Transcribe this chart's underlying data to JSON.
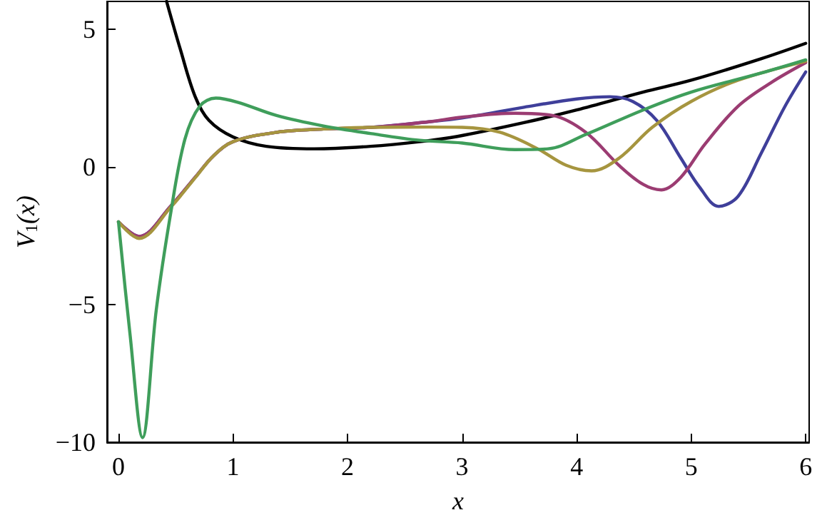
{
  "chart_data": {
    "type": "line",
    "xlabel": "x",
    "ylabel": "V$_{1}$(x)",
    "xlim": [
      -0.1,
      6.03
    ],
    "ylim": [
      -10,
      6
    ],
    "xticks": [
      0,
      1,
      2,
      3,
      4,
      5,
      6
    ],
    "yticks": [
      -10,
      -5,
      0,
      5
    ],
    "series": [
      {
        "color": "#000000",
        "x": [
          0.42,
          0.54,
          0.67,
          0.79,
          1.0,
          1.29,
          1.71,
          2.2,
          2.63,
          2.96,
          3.54,
          4.0,
          4.58,
          5.0,
          5.61,
          6.0
        ],
        "values": [
          6.0,
          4.26,
          2.54,
          1.68,
          1.08,
          0.74,
          0.65,
          0.74,
          0.91,
          1.1,
          1.6,
          2.06,
          2.71,
          3.14,
          3.92,
          4.48
        ]
      },
      {
        "color": "#3f3f9a",
        "x": [
          0,
          0.18,
          0.46,
          0.67,
          0.83,
          1.0,
          1.38,
          1.79,
          2.21,
          2.71,
          3.0,
          3.54,
          4.0,
          4.29,
          4.49,
          4.7,
          4.91,
          5.07,
          5.24,
          5.41,
          5.61,
          5.82,
          6.0
        ],
        "values": [
          -2.0,
          -2.53,
          -1.41,
          -0.38,
          0.4,
          0.91,
          1.25,
          1.37,
          1.43,
          1.63,
          1.77,
          2.16,
          2.46,
          2.54,
          2.37,
          1.68,
          0.31,
          -0.72,
          -1.44,
          -1.07,
          0.48,
          2.2,
          3.44
        ]
      },
      {
        "color": "#9b3c72",
        "x": [
          0,
          0.18,
          0.46,
          0.67,
          0.83,
          1.0,
          1.38,
          1.79,
          2.21,
          2.71,
          3.0,
          3.46,
          3.79,
          4.08,
          4.37,
          4.58,
          4.74,
          4.91,
          5.12,
          5.41,
          5.7,
          6.0
        ],
        "values": [
          -2.0,
          -2.53,
          -1.41,
          -0.38,
          0.4,
          0.91,
          1.25,
          1.37,
          1.43,
          1.63,
          1.8,
          1.94,
          1.86,
          1.25,
          0.05,
          -0.64,
          -0.84,
          -0.38,
          0.82,
          2.2,
          3.06,
          3.78
        ]
      },
      {
        "color": "#a6953f",
        "x": [
          0,
          0.18,
          0.46,
          0.67,
          0.83,
          1.0,
          1.38,
          1.79,
          2.21,
          2.71,
          3.0,
          3.33,
          3.66,
          3.91,
          4.13,
          4.37,
          4.66,
          5.0,
          5.41,
          6.0
        ],
        "values": [
          -2.0,
          -2.6,
          -1.45,
          -0.4,
          0.4,
          0.91,
          1.25,
          1.37,
          1.43,
          1.44,
          1.43,
          1.25,
          0.65,
          0.05,
          -0.15,
          0.31,
          1.43,
          2.37,
          3.14,
          3.83
        ]
      },
      {
        "color": "#3f9e5b",
        "x": [
          0,
          0.1,
          0.21,
          0.33,
          0.46,
          0.58,
          0.71,
          0.85,
          1.04,
          1.38,
          1.79,
          2.21,
          2.63,
          3.0,
          3.46,
          3.75,
          4.08,
          4.58,
          5.0,
          5.61,
          6.0
        ],
        "values": [
          -2.0,
          -6.05,
          -9.83,
          -5.19,
          -1.58,
          1.0,
          2.2,
          2.49,
          2.34,
          1.86,
          1.48,
          1.2,
          0.96,
          0.86,
          0.62,
          0.65,
          1.17,
          2.06,
          2.71,
          3.4,
          3.88
        ]
      }
    ]
  }
}
